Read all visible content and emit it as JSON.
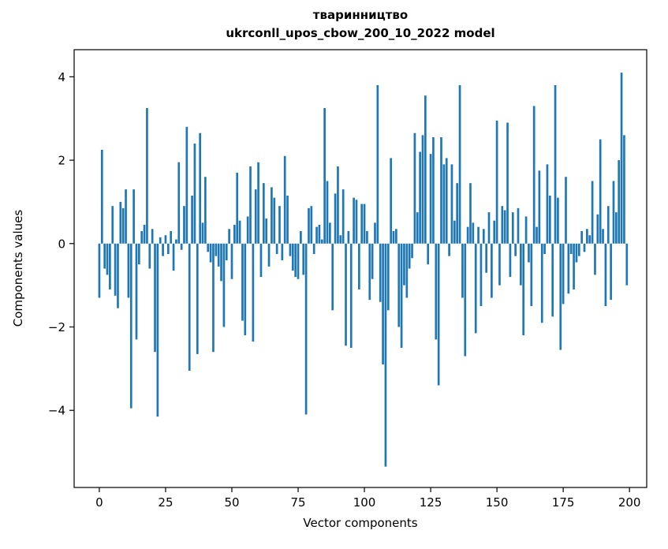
{
  "chart_data": {
    "type": "bar",
    "title": "тваринництво",
    "subtitle": "ukrconll_upos_cbow_200_10_2022 model",
    "xlabel": "Vector components",
    "ylabel": "Components values",
    "bar_color": "#1f77b4",
    "grid": false,
    "legend": "none",
    "xlim": [
      -9.5,
      206.5
    ],
    "ylim": [
      -5.85,
      4.65
    ],
    "xticks": [
      0,
      25,
      50,
      75,
      100,
      125,
      150,
      175,
      200
    ],
    "yticks": [
      -4,
      -2,
      0,
      2,
      4
    ],
    "x_start": 0,
    "values": [
      -1.3,
      2.25,
      -0.6,
      -0.75,
      -1.1,
      0.9,
      -1.25,
      -1.55,
      1.0,
      0.85,
      1.3,
      -1.3,
      -3.95,
      1.3,
      -2.3,
      -0.5,
      0.3,
      0.45,
      3.25,
      -0.6,
      0.35,
      -2.6,
      -4.15,
      0.15,
      -0.3,
      0.2,
      -0.25,
      0.3,
      -0.65,
      0.1,
      1.95,
      -0.15,
      0.9,
      2.8,
      -3.05,
      1.15,
      2.4,
      -2.65,
      2.65,
      0.5,
      1.6,
      -0.2,
      -0.45,
      -2.6,
      -0.3,
      -0.55,
      -0.9,
      -2.0,
      -0.4,
      0.35,
      -0.85,
      0.45,
      1.7,
      0.55,
      -1.85,
      -2.2,
      0.65,
      1.85,
      -2.35,
      1.3,
      1.95,
      -0.8,
      1.45,
      0.6,
      -0.55,
      1.35,
      1.1,
      -0.25,
      0.9,
      -0.4,
      2.1,
      1.15,
      -0.3,
      -0.65,
      -0.8,
      -0.85,
      0.3,
      -0.75,
      -4.1,
      0.85,
      0.9,
      -0.25,
      0.4,
      0.45,
      0.1,
      3.25,
      1.5,
      0.5,
      -1.6,
      1.2,
      1.85,
      0.2,
      1.3,
      -2.45,
      0.3,
      -2.5,
      1.1,
      1.05,
      -1.1,
      0.95,
      0.95,
      0.3,
      -1.35,
      -0.85,
      0.5,
      3.8,
      -1.4,
      -2.9,
      -5.35,
      -1.6,
      2.05,
      0.3,
      0.35,
      -2.0,
      -2.5,
      -1.0,
      -1.3,
      -0.6,
      -0.35,
      2.65,
      0.75,
      2.2,
      2.6,
      3.55,
      -0.5,
      2.15,
      2.55,
      -2.3,
      -3.4,
      2.55,
      1.9,
      2.05,
      -0.3,
      1.9,
      0.55,
      1.45,
      3.8,
      -1.3,
      -2.7,
      0.4,
      1.45,
      0.5,
      -2.15,
      0.4,
      -1.5,
      0.35,
      -0.7,
      0.75,
      -1.3,
      0.55,
      2.95,
      -1.0,
      0.9,
      0.8,
      2.9,
      -0.8,
      0.75,
      -0.3,
      0.85,
      -1.0,
      -2.2,
      0.65,
      -0.45,
      -1.5,
      3.3,
      0.4,
      1.75,
      -1.9,
      -0.25,
      1.9,
      1.15,
      -1.75,
      3.8,
      1.1,
      -2.55,
      -1.45,
      1.6,
      -1.2,
      -0.25,
      -1.1,
      -0.45,
      -0.3,
      0.3,
      -0.2,
      0.35,
      0.2,
      1.5,
      -0.75,
      0.7,
      2.5,
      0.35,
      -1.5,
      0.9,
      -1.35,
      1.5,
      0.75,
      2.0,
      4.1,
      2.6,
      -1.0
    ]
  }
}
